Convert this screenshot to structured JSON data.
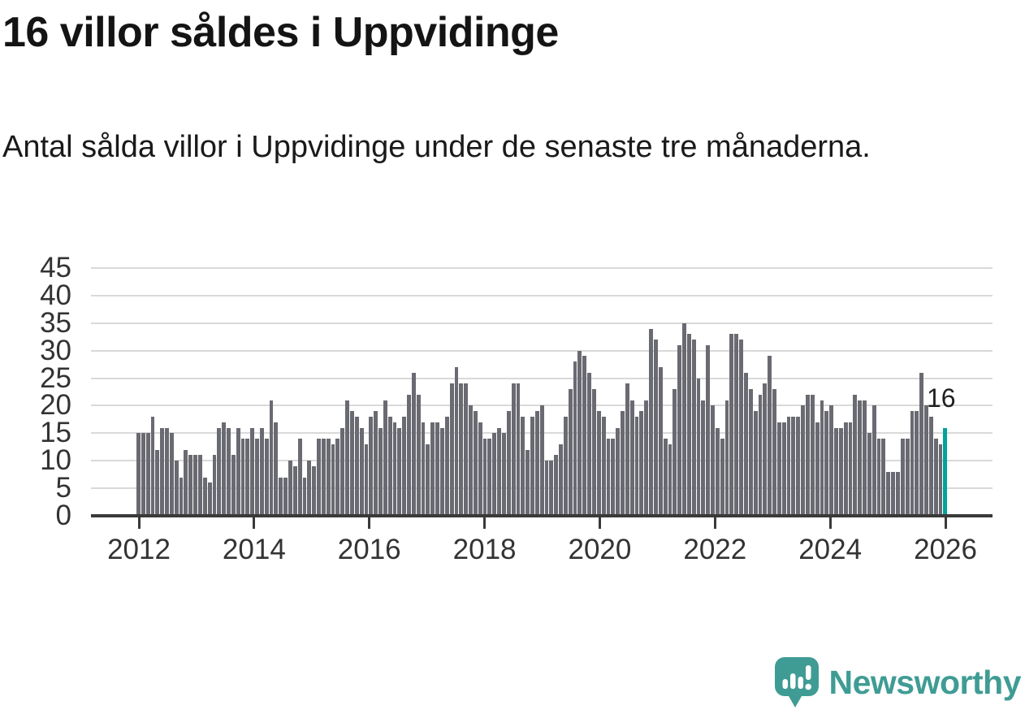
{
  "title": "16 villor såldes i Uppvidinge",
  "subtitle": "Antal sålda villor i Uppvidinge under de senaste tre månaderna.",
  "annotation": {
    "last_value_label": "16"
  },
  "branding": {
    "name": "Newsworthy",
    "icon": "speech-bubble-bar-chart-exclamation-icon"
  },
  "colors": {
    "bar": "#6a6a72",
    "highlight": "#00a39c",
    "logo_teal": "#3f9c94",
    "grid": "#d9d9d9",
    "axis": "#3a3a3a",
    "axis_text": "#333333",
    "text": "#141414"
  },
  "chart_data": {
    "type": "bar",
    "title": "16 villor såldes i Uppvidinge",
    "xlabel": "",
    "ylabel": "",
    "x_start": "2012-01",
    "x_interval": "monthly",
    "x_tick_labels": [
      "2012",
      "2014",
      "2016",
      "2018",
      "2020",
      "2022",
      "2024",
      "2026"
    ],
    "y_ticks": [
      0,
      5,
      10,
      15,
      20,
      25,
      30,
      35,
      40,
      45
    ],
    "ylim": [
      0,
      45
    ],
    "grid": true,
    "legend": false,
    "highlight_last_bar": true,
    "last_value": 16,
    "values": [
      15,
      15,
      15,
      18,
      12,
      16,
      16,
      15,
      10,
      7,
      12,
      11,
      11,
      11,
      7,
      6,
      11,
      16,
      17,
      16,
      11,
      16,
      14,
      14,
      16,
      14,
      16,
      14,
      21,
      17,
      7,
      7,
      10,
      9,
      14,
      7,
      10,
      9,
      14,
      14,
      14,
      13,
      14,
      16,
      21,
      19,
      18,
      16,
      13,
      18,
      19,
      16,
      21,
      18,
      17,
      16,
      18,
      22,
      26,
      22,
      17,
      13,
      17,
      17,
      16,
      18,
      24,
      27,
      24,
      24,
      20,
      19,
      17,
      14,
      14,
      15,
      16,
      15,
      19,
      24,
      24,
      18,
      12,
      18,
      19,
      20,
      10,
      10,
      11,
      13,
      18,
      23,
      28,
      30,
      29,
      26,
      23,
      19,
      18,
      14,
      14,
      16,
      19,
      24,
      21,
      18,
      19,
      21,
      34,
      32,
      27,
      14,
      13,
      23,
      31,
      35,
      33,
      32,
      25,
      21,
      31,
      20,
      16,
      14,
      21,
      33,
      33,
      32,
      26,
      23,
      19,
      22,
      24,
      29,
      23,
      17,
      17,
      18,
      18,
      18,
      20,
      22,
      22,
      17,
      21,
      19,
      20,
      16,
      16,
      17,
      17,
      22,
      21,
      21,
      15,
      20,
      14,
      14,
      8,
      8,
      8,
      14,
      14,
      19,
      19,
      26,
      20,
      18,
      14,
      13,
      16
    ]
  }
}
